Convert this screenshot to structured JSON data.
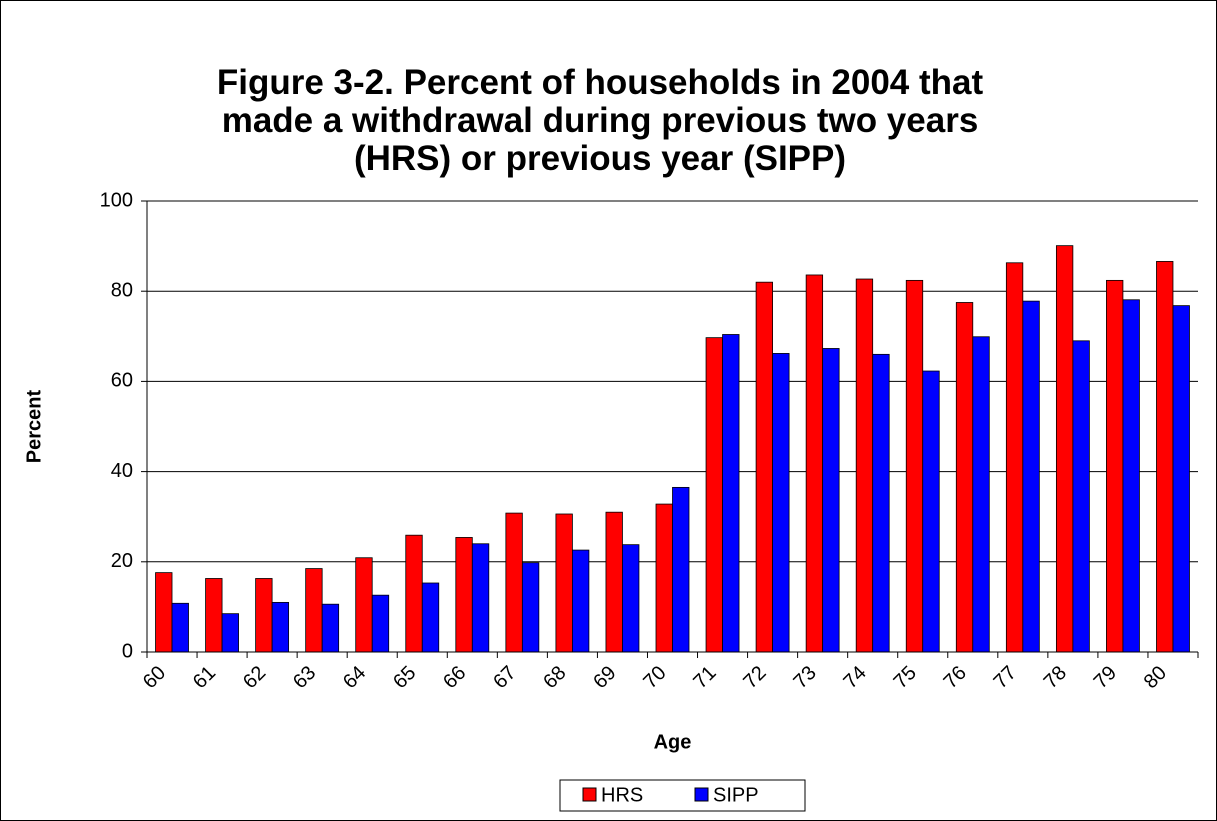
{
  "chart_data": {
    "type": "bar",
    "title": "Figure 3-2. Percent of households in 2004 that made a withdrawal during previous two years (HRS) or previous year (SIPP)",
    "x_label": "Age",
    "y_label": "Percent",
    "categories": [
      "60",
      "61",
      "62",
      "63",
      "64",
      "65",
      "66",
      "67",
      "68",
      "69",
      "70",
      "71",
      "72",
      "73",
      "74",
      "75",
      "76",
      "77",
      "78",
      "79",
      "80"
    ],
    "series": [
      {
        "name": "HRS",
        "color": "#ff0000",
        "values": [
          17.6,
          16.3,
          16.3,
          18.5,
          20.9,
          25.9,
          25.4,
          30.8,
          30.6,
          31,
          32.8,
          69.7,
          82,
          83.6,
          82.7,
          82.4,
          77.5,
          86.3,
          90.1,
          82.4,
          86.6
        ]
      },
      {
        "name": "SIPP",
        "color": "#0000ff",
        "values": [
          10.8,
          8.5,
          11,
          10.6,
          12.6,
          15.3,
          24,
          19.8,
          22.6,
          23.8,
          36.5,
          70.4,
          66.2,
          67.3,
          66,
          62.3,
          69.9,
          77.8,
          69,
          78.1,
          76.8
        ]
      }
    ],
    "ylim": [
      0,
      100
    ],
    "yticks": [
      0,
      20,
      40,
      60,
      80,
      100
    ],
    "grid": true,
    "legend": "bottom"
  }
}
